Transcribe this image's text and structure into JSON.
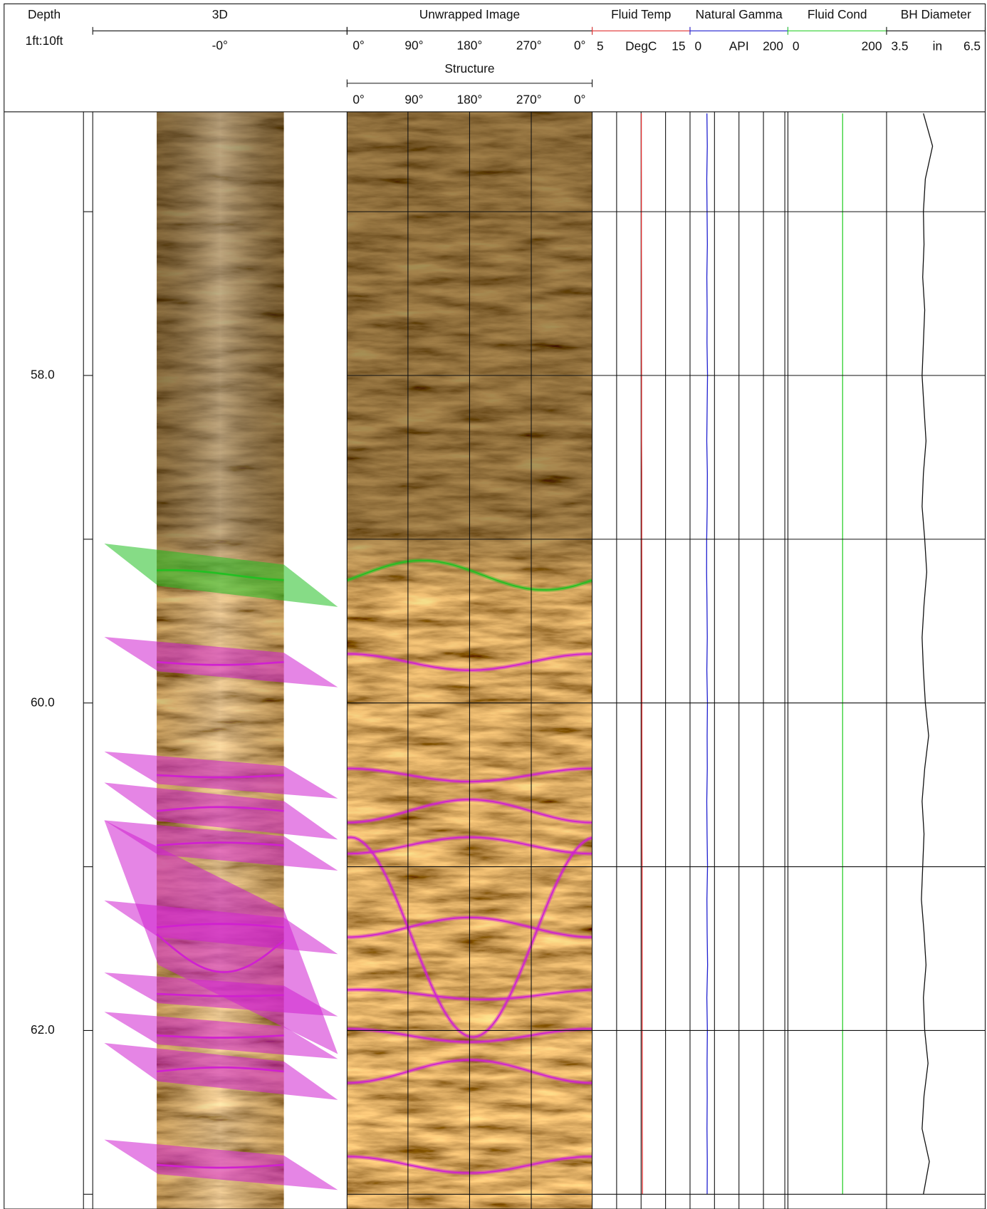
{
  "depth": {
    "title": "Depth",
    "scale": "1ft:10ft",
    "range": [
      56.39,
      63.09
    ],
    "grid": [
      57,
      58,
      59,
      60,
      61,
      62,
      63
    ],
    "labels": [
      {
        "value": 58,
        "label": "58.0"
      },
      {
        "value": 60,
        "label": "60.0"
      },
      {
        "value": 62,
        "label": "62.0"
      }
    ]
  },
  "image_3d": {
    "title": "3D",
    "view": "-0°"
  },
  "unwrapped": {
    "title": "Unwrapped Image",
    "azimuth_labels": [
      "0°",
      "90°",
      "180°",
      "270°",
      "0°"
    ]
  },
  "structure": {
    "title": "Structure",
    "azimuth_labels": [
      "0°",
      "90°",
      "180°",
      "270°",
      "0°"
    ],
    "picks": [
      {
        "depth": 59.22,
        "amplitude": 0.09,
        "azimuth": 290,
        "color": "#22c022"
      },
      {
        "depth": 59.75,
        "amplitude": 0.05,
        "azimuth": 180,
        "color": "#d020d0"
      },
      {
        "depth": 60.44,
        "amplitude": 0.04,
        "azimuth": 180,
        "color": "#d020d0"
      },
      {
        "depth": 60.66,
        "amplitude": 0.07,
        "azimuth": 0,
        "color": "#d020d0"
      },
      {
        "depth": 60.87,
        "amplitude": 0.05,
        "azimuth": 0,
        "color": "#d020d0"
      },
      {
        "depth": 61.43,
        "amplitude": 0.61,
        "azimuth": 185,
        "color": "#d020d0"
      },
      {
        "depth": 61.37,
        "amplitude": 0.06,
        "azimuth": 0,
        "color": "#d020d0"
      },
      {
        "depth": 61.78,
        "amplitude": 0.03,
        "azimuth": 200,
        "color": "#d020d0"
      },
      {
        "depth": 62.03,
        "amplitude": 0.04,
        "azimuth": 180,
        "color": "#d020d0"
      },
      {
        "depth": 62.25,
        "amplitude": 0.07,
        "azimuth": 0,
        "color": "#d020d0"
      },
      {
        "depth": 62.82,
        "amplitude": 0.05,
        "azimuth": 180,
        "color": "#d020d0"
      }
    ]
  },
  "curves": {
    "depths": [
      56.4,
      56.6,
      56.8,
      57.0,
      57.2,
      57.4,
      57.6,
      57.8,
      58.0,
      58.2,
      58.4,
      58.6,
      58.8,
      59.0,
      59.2,
      59.4,
      59.6,
      59.8,
      60.0,
      60.2,
      60.4,
      60.6,
      60.8,
      61.0,
      61.2,
      61.4,
      61.6,
      61.8,
      62.0,
      62.2,
      62.4,
      62.6,
      62.8,
      63.0
    ],
    "tracks": [
      {
        "title": "Fluid Temp",
        "unit": "DegC",
        "min": 5,
        "max": 15,
        "color": "#e03030",
        "values": [
          10.02,
          10.02,
          10.03,
          10.03,
          10.03,
          10.04,
          10.04,
          10.04,
          10.05,
          10.05,
          10.05,
          10.06,
          10.06,
          10.06,
          10.07,
          10.07,
          10.07,
          10.08,
          10.08,
          10.08,
          10.09,
          10.09,
          10.09,
          10.1,
          10.1,
          10.1,
          10.11,
          10.11,
          10.11,
          10.12,
          10.12,
          10.12,
          10.13,
          10.13
        ]
      },
      {
        "title": "Natural Gamma",
        "unit": "API",
        "min": 0,
        "max": 200,
        "color": "#2020d0",
        "values": [
          34.5,
          35.2,
          34.1,
          34.8,
          35.5,
          34.3,
          35.0,
          34.6,
          35.8,
          34.9,
          34.2,
          35.4,
          35.1,
          34.0,
          33.8,
          34.7,
          35.3,
          34.4,
          35.6,
          34.9,
          35.2,
          34.1,
          34.8,
          35.7,
          34.5,
          35.0,
          35.9,
          34.3,
          35.4,
          34.8,
          35.1,
          34.6,
          35.3,
          34.9
        ]
      },
      {
        "title": "Fluid Cond",
        "min": 0,
        "max": 200,
        "color": "#30d030",
        "values": [
          111,
          111,
          111,
          111,
          111,
          111,
          111,
          111,
          111,
          111,
          111,
          111,
          111,
          111,
          111,
          111,
          111,
          111,
          111,
          111,
          111,
          111,
          111,
          111,
          111,
          111,
          111,
          111,
          111,
          111,
          111,
          111,
          111,
          111
        ]
      },
      {
        "title": "BH Diameter",
        "unit": "in",
        "min": 3.5,
        "max": 6.5,
        "color": "#111111",
        "values": [
          4.62,
          4.9,
          4.68,
          4.62,
          4.64,
          4.6,
          4.66,
          4.62,
          4.58,
          4.64,
          4.7,
          4.62,
          4.58,
          4.66,
          4.72,
          4.64,
          4.58,
          4.62,
          4.68,
          4.78,
          4.66,
          4.58,
          4.64,
          4.6,
          4.56,
          4.64,
          4.7,
          4.62,
          4.66,
          4.76,
          4.64,
          4.58,
          4.8,
          4.62
        ]
      }
    ]
  }
}
